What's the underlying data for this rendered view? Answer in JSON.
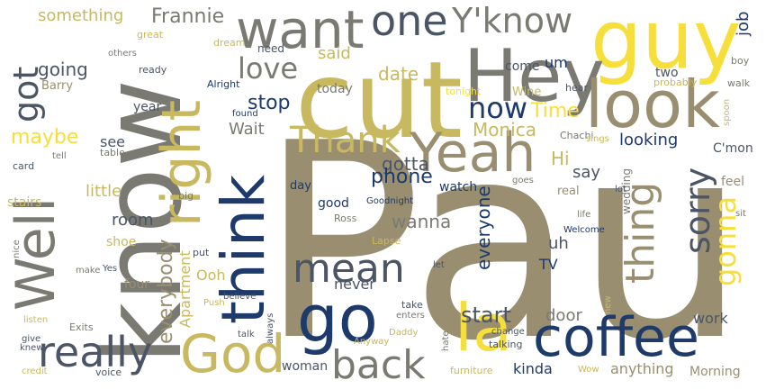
{
  "palette": {
    "khaki": "#998f70",
    "gray": "#7a7a72",
    "gold": "#c8b860",
    "yellow": "#f6df3a",
    "navy": "#1d3a6b",
    "slate": "#4b5566",
    "background": "#ffffff"
  },
  "words": [
    {
      "id": "paul",
      "text": "Paul",
      "color": "#998f70"
    },
    {
      "id": "know",
      "text": "know",
      "color": "#7a7a72"
    },
    {
      "id": "cut",
      "text": "cut",
      "color": "#c8b860"
    },
    {
      "id": "guy",
      "text": "guy",
      "color": "#f6df3a"
    },
    {
      "id": "hey",
      "text": "Hey",
      "color": "#7a7a72"
    },
    {
      "id": "look",
      "text": "look",
      "color": "#998f70"
    },
    {
      "id": "yeah",
      "text": "Yeah",
      "color": "#998f70"
    },
    {
      "id": "think",
      "text": "think",
      "color": "#1d3a6b"
    },
    {
      "id": "right",
      "text": "right",
      "color": "#c8b860"
    },
    {
      "id": "well",
      "text": "Well",
      "color": "#7a7a72"
    },
    {
      "id": "coffee",
      "text": "coffee",
      "color": "#1d3a6b"
    },
    {
      "id": "go",
      "text": "go",
      "color": "#1d3a6b"
    },
    {
      "id": "la",
      "text": "la",
      "color": "#f6df3a"
    },
    {
      "id": "want",
      "text": "want",
      "color": "#7a7a72"
    },
    {
      "id": "one",
      "text": "one",
      "color": "#4b5566"
    },
    {
      "id": "yknow",
      "text": "Y'know",
      "color": "#7a7a72"
    },
    {
      "id": "god",
      "text": "God",
      "color": "#c8b860"
    },
    {
      "id": "really",
      "text": "really",
      "color": "#4b5566"
    },
    {
      "id": "back",
      "text": "back",
      "color": "#7a7a72"
    },
    {
      "id": "mean",
      "text": "mean",
      "color": "#4b5566"
    },
    {
      "id": "thank",
      "text": "Thank",
      "color": "#c8b860"
    },
    {
      "id": "thing",
      "text": "thing",
      "color": "#998f70"
    },
    {
      "id": "sorry",
      "text": "sorry",
      "color": "#4b5566"
    },
    {
      "id": "gonna",
      "text": "gonna",
      "color": "#f6df3a"
    },
    {
      "id": "love",
      "text": "love",
      "color": "#7a7a72"
    },
    {
      "id": "now",
      "text": "now",
      "color": "#1d3a6b"
    },
    {
      "id": "got",
      "text": "got",
      "color": "#4b5566"
    },
    {
      "id": "something",
      "text": "something",
      "color": "#c8b860"
    },
    {
      "id": "frannie",
      "text": "Frannie",
      "color": "#7a7a72"
    },
    {
      "id": "going",
      "text": "going",
      "color": "#4b5566"
    },
    {
      "id": "barry",
      "text": "Barry",
      "color": "#998f70"
    },
    {
      "id": "maybe",
      "text": "maybe",
      "color": "#f6df3a"
    },
    {
      "id": "said",
      "text": "said",
      "color": "#c8b860"
    },
    {
      "id": "date",
      "text": "date",
      "color": "#c8b860"
    },
    {
      "id": "um",
      "text": "um",
      "color": "#1d3a6b"
    },
    {
      "id": "come",
      "text": "come",
      "color": "#4b5566"
    },
    {
      "id": "job",
      "text": "job",
      "color": "#1d3a6b"
    },
    {
      "id": "time",
      "text": "Time",
      "color": "#f6df3a"
    },
    {
      "id": "stop",
      "text": "stop",
      "color": "#1d3a6b"
    },
    {
      "id": "wait",
      "text": "Wait",
      "color": "#7a7a72"
    },
    {
      "id": "monica",
      "text": "Monica",
      "color": "#c8b860"
    },
    {
      "id": "hi",
      "text": "Hi",
      "color": "#c8b860"
    },
    {
      "id": "say",
      "text": "say",
      "color": "#4b5566"
    },
    {
      "id": "gotta",
      "text": "gotta",
      "color": "#4b5566"
    },
    {
      "id": "phone",
      "text": "phone",
      "color": "#1d3a6b"
    },
    {
      "id": "looking",
      "text": "looking",
      "color": "#1d3a6b"
    },
    {
      "id": "wanna",
      "text": "wanna",
      "color": "#7a7a72"
    },
    {
      "id": "everyone",
      "text": "everyone",
      "color": "#1d3a6b"
    },
    {
      "id": "everybody",
      "text": "everybody",
      "color": "#998f70"
    },
    {
      "id": "apartment",
      "text": "Apartment",
      "color": "#c8b860"
    },
    {
      "id": "start",
      "text": "start",
      "color": "#4b5566"
    },
    {
      "id": "door",
      "text": "door",
      "color": "#7a7a72"
    },
    {
      "id": "work",
      "text": "work",
      "color": "#4b5566"
    },
    {
      "id": "anything",
      "text": "anything",
      "color": "#998f70"
    },
    {
      "id": "woman",
      "text": "woman",
      "color": "#4b5566"
    },
    {
      "id": "kinda",
      "text": "kinda",
      "color": "#1d3a6b"
    },
    {
      "id": "morning",
      "text": "Morning",
      "color": "#998f70"
    },
    {
      "id": "little",
      "text": "little",
      "color": "#c8b860"
    },
    {
      "id": "room",
      "text": "room",
      "color": "#4b5566"
    },
    {
      "id": "stairs",
      "text": "stairs",
      "color": "#c8b860"
    },
    {
      "id": "shoe",
      "text": "shoe",
      "color": "#c8b860"
    },
    {
      "id": "four",
      "text": "four",
      "color": "#998f70"
    },
    {
      "id": "ooh",
      "text": "Ooh",
      "color": "#c8b860"
    },
    {
      "id": "never",
      "text": "never",
      "color": "#4b5566"
    },
    {
      "id": "uh",
      "text": "uh",
      "color": "#4b5566"
    },
    {
      "id": "tv",
      "text": "TV",
      "color": "#1d3a6b"
    },
    {
      "id": "see",
      "text": "see",
      "color": "#4b5566"
    },
    {
      "id": "year",
      "text": "year",
      "color": "#4b5566"
    },
    {
      "id": "today",
      "text": "today",
      "color": "#7a7a72"
    },
    {
      "id": "wine",
      "text": "Wine",
      "color": "#c8b860"
    },
    {
      "id": "two",
      "text": "two",
      "color": "#4b5566"
    },
    {
      "id": "cmon",
      "text": "C'mon",
      "color": "#4b5566"
    },
    {
      "id": "feel",
      "text": "feel",
      "color": "#998f70"
    },
    {
      "id": "real",
      "text": "real",
      "color": "#998f70"
    },
    {
      "id": "wedding",
      "text": "wedding",
      "color": "#7a7a72"
    },
    {
      "id": "watch",
      "text": "watch",
      "color": "#1d3a6b"
    },
    {
      "id": "good",
      "text": "good",
      "color": "#1d3a6b"
    },
    {
      "id": "day",
      "text": "day",
      "color": "#1d3a6b"
    },
    {
      "id": "need",
      "text": "need",
      "color": "#4b5566"
    },
    {
      "id": "dream",
      "text": "dream",
      "color": "#c8b860"
    },
    {
      "id": "alright",
      "text": "Alright",
      "color": "#1d3a6b"
    },
    {
      "id": "great",
      "text": "great",
      "color": "#c8b860"
    },
    {
      "id": "others",
      "text": "others",
      "color": "#7a7a72"
    },
    {
      "id": "ready",
      "text": "ready",
      "color": "#4b5566"
    },
    {
      "id": "tonight",
      "text": "tonight",
      "color": "#f6df3a"
    },
    {
      "id": "hear",
      "text": "hear",
      "color": "#4b5566"
    },
    {
      "id": "probably",
      "text": "probably",
      "color": "#c8b860"
    },
    {
      "id": "walk",
      "text": "walk",
      "color": "#7a7a72"
    },
    {
      "id": "boy",
      "text": "boy",
      "color": "#7a7a72"
    },
    {
      "id": "spoon",
      "text": "spoon",
      "color": "#c8b860"
    },
    {
      "id": "chachi",
      "text": "Chachi",
      "color": "#7a7a72"
    },
    {
      "id": "sings",
      "text": "sings",
      "color": "#c8b860"
    },
    {
      "id": "found",
      "text": "found",
      "color": "#1d3a6b"
    },
    {
      "id": "card",
      "text": "card",
      "color": "#4b5566"
    },
    {
      "id": "tell",
      "text": "tell",
      "color": "#7a7a72"
    },
    {
      "id": "table",
      "text": "table",
      "color": "#7a7a72"
    },
    {
      "id": "big",
      "text": "big",
      "color": "#7a7a72"
    },
    {
      "id": "ross",
      "text": "Ross",
      "color": "#7a7a72"
    },
    {
      "id": "goodnight",
      "text": "Goodnight",
      "color": "#1d3a6b"
    },
    {
      "id": "goes",
      "text": "goes",
      "color": "#7a7a72"
    },
    {
      "id": "lot",
      "text": "lot",
      "color": "#4b5566"
    },
    {
      "id": "sit",
      "text": "sit",
      "color": "#7a7a72"
    },
    {
      "id": "life",
      "text": "life",
      "color": "#7a7a72"
    },
    {
      "id": "welcome",
      "text": "Welcome",
      "color": "#1d3a6b"
    },
    {
      "id": "lapse",
      "text": "Lapse",
      "color": "#c8b860"
    },
    {
      "id": "put",
      "text": "put",
      "color": "#4b5566"
    },
    {
      "id": "nice",
      "text": "nice",
      "color": "#7a7a72"
    },
    {
      "id": "make",
      "text": "make",
      "color": "#7a7a72"
    },
    {
      "id": "yes",
      "text": "Yes",
      "color": "#4b5566"
    },
    {
      "id": "let",
      "text": "let",
      "color": "#4b5566"
    },
    {
      "id": "believe",
      "text": "believe",
      "color": "#4b5566"
    },
    {
      "id": "push",
      "text": "Push",
      "color": "#c8b860"
    },
    {
      "id": "take",
      "text": "take",
      "color": "#4b5566"
    },
    {
      "id": "enters",
      "text": "enters",
      "color": "#7a7a72"
    },
    {
      "id": "new",
      "text": "new",
      "color": "#c8b860"
    },
    {
      "id": "listen",
      "text": "listen",
      "color": "#c8b860"
    },
    {
      "id": "exits",
      "text": "Exits",
      "color": "#7a7a72"
    },
    {
      "id": "always",
      "text": "always",
      "color": "#4b5566"
    },
    {
      "id": "talk",
      "text": "talk",
      "color": "#4b5566"
    },
    {
      "id": "daddy",
      "text": "Daddy",
      "color": "#c8b860"
    },
    {
      "id": "give",
      "text": "give",
      "color": "#4b5566"
    },
    {
      "id": "knew",
      "text": "knew",
      "color": "#4b5566"
    },
    {
      "id": "credit",
      "text": "credit",
      "color": "#c8b860"
    },
    {
      "id": "voice",
      "text": "voice",
      "color": "#4b5566"
    },
    {
      "id": "anyway",
      "text": "Anyway",
      "color": "#c8b860"
    },
    {
      "id": "hate",
      "text": "hate",
      "color": "#7a7a72"
    },
    {
      "id": "change",
      "text": "change",
      "color": "#4b5566"
    },
    {
      "id": "talking",
      "text": "talking",
      "color": "#4b5566"
    },
    {
      "id": "furniture",
      "text": "furniture",
      "color": "#c8b860"
    },
    {
      "id": "wow",
      "text": "Wow",
      "color": "#c8b860"
    }
  ]
}
